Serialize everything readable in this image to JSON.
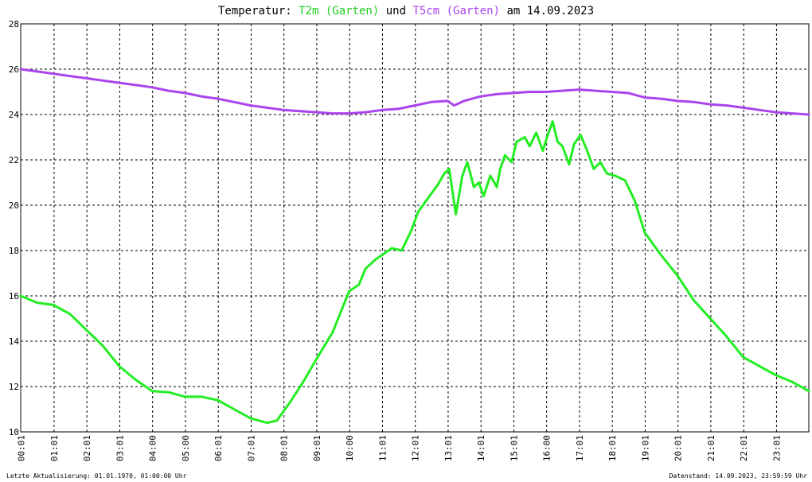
{
  "title": {
    "prefix": "Temperatur: ",
    "series1_label": "T2m (Garten)",
    "middle": " und ",
    "series2_label": "T5cm (Garten)",
    "suffix": " am 14.09.2023"
  },
  "footer": {
    "left": "Letzte Aktualisierung: 01.01.1970, 01:00:00 Uhr",
    "right": "Datenstand: 14.09.2023, 23:59:59 Uhr"
  },
  "colors": {
    "t2m": "#22ee22",
    "t5cm": "#aa44ee",
    "grid": "#000000"
  },
  "chart_data": {
    "type": "line",
    "ylim": [
      10,
      28
    ],
    "yticks": [
      10,
      12,
      14,
      16,
      18,
      20,
      22,
      24,
      26,
      28
    ],
    "xlim": [
      0,
      24
    ],
    "xtick_labels": [
      "00:01",
      "01:01",
      "02:01",
      "03:01",
      "04:00",
      "05:00",
      "06:01",
      "07:01",
      "08:01",
      "09:01",
      "10:00",
      "11:01",
      "12:01",
      "13:01",
      "14:01",
      "15:01",
      "16:00",
      "17:01",
      "18:01",
      "19:01",
      "20:01",
      "21:01",
      "22:01",
      "23:01"
    ],
    "grid": true,
    "series": [
      {
        "name": "T2m (Garten)",
        "color": "#22ee22",
        "x": [
          0,
          0.5,
          1,
          1.5,
          2,
          2.5,
          3,
          3.5,
          4,
          4.5,
          5,
          5.5,
          6,
          6.5,
          7,
          7.5,
          7.8,
          8.2,
          8.6,
          9,
          9.5,
          10,
          10.3,
          10.5,
          10.8,
          11,
          11.3,
          11.6,
          11.9,
          12.1,
          12.4,
          12.7,
          12.9,
          13.05,
          13.25,
          13.45,
          13.6,
          13.8,
          13.95,
          14.1,
          14.3,
          14.5,
          14.6,
          14.75,
          14.95,
          15.1,
          15.35,
          15.5,
          15.7,
          15.9,
          16.05,
          16.2,
          16.35,
          16.5,
          16.7,
          16.85,
          17.05,
          17.25,
          17.45,
          17.65,
          17.85,
          18.1,
          18.4,
          18.7,
          19,
          19.5,
          20,
          20.5,
          21,
          21.5,
          22,
          22.5,
          23,
          23.5,
          24
        ],
        "values": [
          16.0,
          15.7,
          15.6,
          15.2,
          14.5,
          13.8,
          12.9,
          12.3,
          11.8,
          11.75,
          11.55,
          11.55,
          11.4,
          11.0,
          10.6,
          10.4,
          10.5,
          11.3,
          12.2,
          13.2,
          14.4,
          16.2,
          16.5,
          17.2,
          17.6,
          17.8,
          18.1,
          18.0,
          18.9,
          19.7,
          20.3,
          20.9,
          21.4,
          21.6,
          19.6,
          21.3,
          21.9,
          20.8,
          21.0,
          20.4,
          21.3,
          20.8,
          21.6,
          22.2,
          21.9,
          22.8,
          23.0,
          22.6,
          23.2,
          22.4,
          23.1,
          23.7,
          22.8,
          22.6,
          21.8,
          22.7,
          23.1,
          22.4,
          21.6,
          21.9,
          21.4,
          21.3,
          21.1,
          20.2,
          18.8,
          17.8,
          16.9,
          15.8,
          15.0,
          14.2,
          13.3,
          12.9,
          12.5,
          12.2,
          11.8
        ]
      },
      {
        "name": "T5cm (Garten)",
        "color": "#aa44ee",
        "x": [
          0,
          0.5,
          1,
          1.5,
          2,
          2.5,
          3,
          3.5,
          4,
          4.5,
          5,
          5.5,
          6,
          6.5,
          7,
          7.5,
          8,
          8.5,
          9,
          9.5,
          10,
          10.5,
          11,
          11.5,
          12,
          12.5,
          13,
          13.2,
          13.5,
          14,
          14.5,
          15,
          15.5,
          16,
          16.5,
          17,
          17.5,
          18,
          18.5,
          19,
          19.5,
          20,
          20.5,
          21,
          21.5,
          22,
          22.5,
          23,
          23.5,
          24
        ],
        "values": [
          26.0,
          25.9,
          25.8,
          25.7,
          25.6,
          25.5,
          25.4,
          25.3,
          25.2,
          25.05,
          24.95,
          24.8,
          24.7,
          24.55,
          24.4,
          24.3,
          24.2,
          24.15,
          24.1,
          24.05,
          24.05,
          24.1,
          24.2,
          24.25,
          24.4,
          24.55,
          24.6,
          24.4,
          24.6,
          24.8,
          24.9,
          24.95,
          25.0,
          25.0,
          25.05,
          25.1,
          25.05,
          25.0,
          24.95,
          24.75,
          24.7,
          24.6,
          24.55,
          24.45,
          24.4,
          24.3,
          24.2,
          24.1,
          24.05,
          24.0
        ]
      }
    ]
  }
}
